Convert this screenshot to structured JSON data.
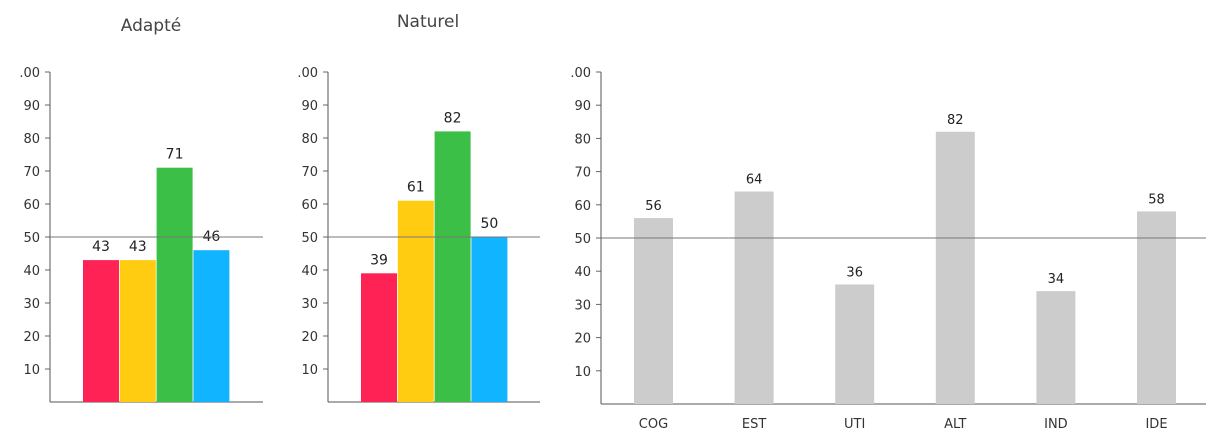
{
  "chart_data": [
    {
      "type": "bar",
      "title": "Adapté",
      "values": [
        43,
        43,
        71,
        46
      ],
      "colors": [
        "#ff2255",
        "#ffcc11",
        "#3cbf46",
        "#11b4ff"
      ],
      "ylim": [
        0,
        100
      ],
      "yticks": [
        ".00",
        "90",
        "80",
        "70",
        "60",
        "50",
        "40",
        "30",
        "20",
        "10"
      ],
      "reference_line": 50
    },
    {
      "type": "bar",
      "title": "Naturel",
      "values": [
        39,
        61,
        82,
        50
      ],
      "colors": [
        "#ff2255",
        "#ffcc11",
        "#3cbf46",
        "#11b4ff"
      ],
      "ylim": [
        0,
        100
      ],
      "yticks": [
        ".00",
        "90",
        "80",
        "70",
        "60",
        "50",
        "40",
        "30",
        "20",
        "10"
      ],
      "reference_line": 50
    },
    {
      "type": "bar",
      "categories": [
        "COG",
        "EST",
        "UTI",
        "ALT",
        "IND",
        "IDE"
      ],
      "values": [
        56,
        64,
        36,
        82,
        34,
        58
      ],
      "color": "#cccccc",
      "ylim": [
        0,
        100
      ],
      "yticks": [
        ".00",
        "90",
        "80",
        "70",
        "60",
        "50",
        "40",
        "30",
        "20",
        "10"
      ],
      "reference_line": 50
    }
  ]
}
